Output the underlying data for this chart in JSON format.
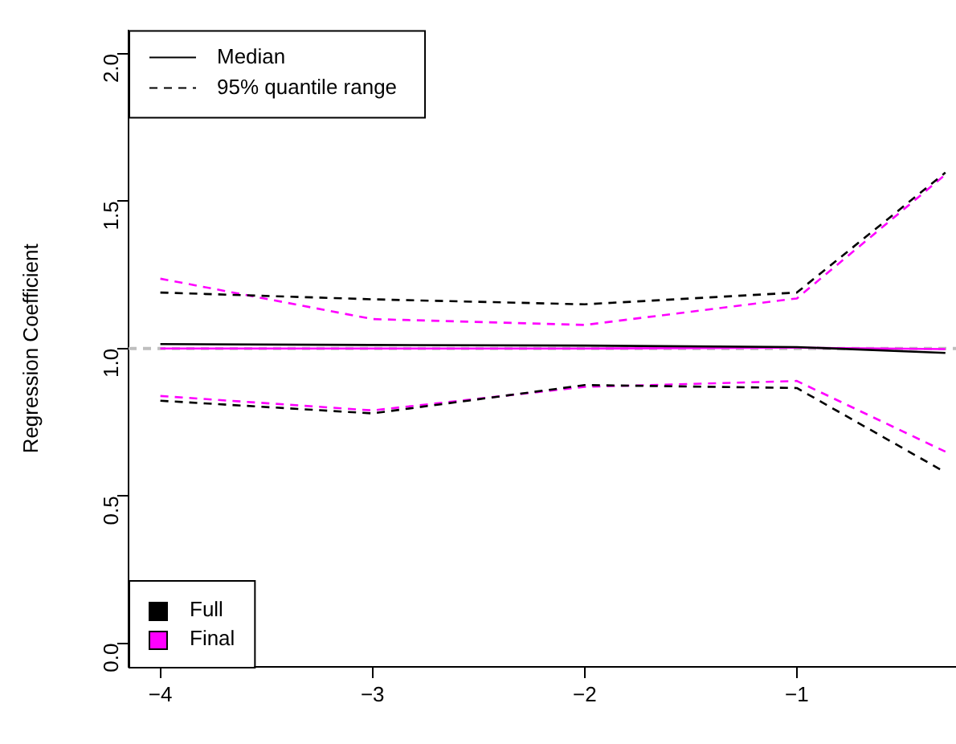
{
  "chart_data": {
    "type": "line",
    "ylabel": "Regression Coefficient",
    "x": [
      -4,
      -3,
      -2,
      -1,
      -0.3
    ],
    "xlim": [
      -4.15,
      -0.25
    ],
    "xticks": [
      {
        "value": -4,
        "label": "−4"
      },
      {
        "value": -3,
        "label": "−3"
      },
      {
        "value": -2,
        "label": "−2"
      },
      {
        "value": -1,
        "label": "−1"
      }
    ],
    "ylim": [
      -0.08,
      2.08
    ],
    "yticks": [
      {
        "value": 0,
        "label": "0.0"
      },
      {
        "value": 0.5,
        "label": "0.5"
      },
      {
        "value": 1,
        "label": "1.0"
      },
      {
        "value": 1.5,
        "label": "1.5"
      },
      {
        "value": 2,
        "label": "2.0"
      }
    ],
    "grid": false,
    "legend": "bottom left",
    "marker": "none",
    "ref_lines": [
      {
        "axis": "y",
        "value": 1,
        "color": "#bebebe",
        "line_style": "dashed"
      }
    ],
    "annotations": [
      "Median",
      "95% quantile range"
    ],
    "series": [
      {
        "name": "Full",
        "color": "#000000",
        "line_style": "solid",
        "values": [
          1.015,
          1.012,
          1.01,
          1.005,
          0.985
        ]
      },
      {
        "color": "#000000",
        "line_style": "dashed",
        "values": [
          1.19,
          1.167,
          1.15,
          1.19,
          1.597
        ]
      },
      {
        "color": "#000000",
        "line_style": "dashed",
        "values": [
          0.823,
          0.78,
          0.876,
          0.866,
          0.58
        ]
      },
      {
        "name": "Final",
        "color": "#ff00ff",
        "line_style": "solid",
        "values": [
          1.0,
          1.0,
          1.0,
          1.003,
          0.998
        ]
      },
      {
        "color": "#ff00ff",
        "line_style": "dashed",
        "values": [
          1.237,
          1.1,
          1.08,
          1.17,
          1.59
        ]
      },
      {
        "color": "#ff00ff",
        "line_style": "dashed",
        "values": [
          0.839,
          0.79,
          0.87,
          0.89,
          0.65
        ]
      }
    ]
  }
}
